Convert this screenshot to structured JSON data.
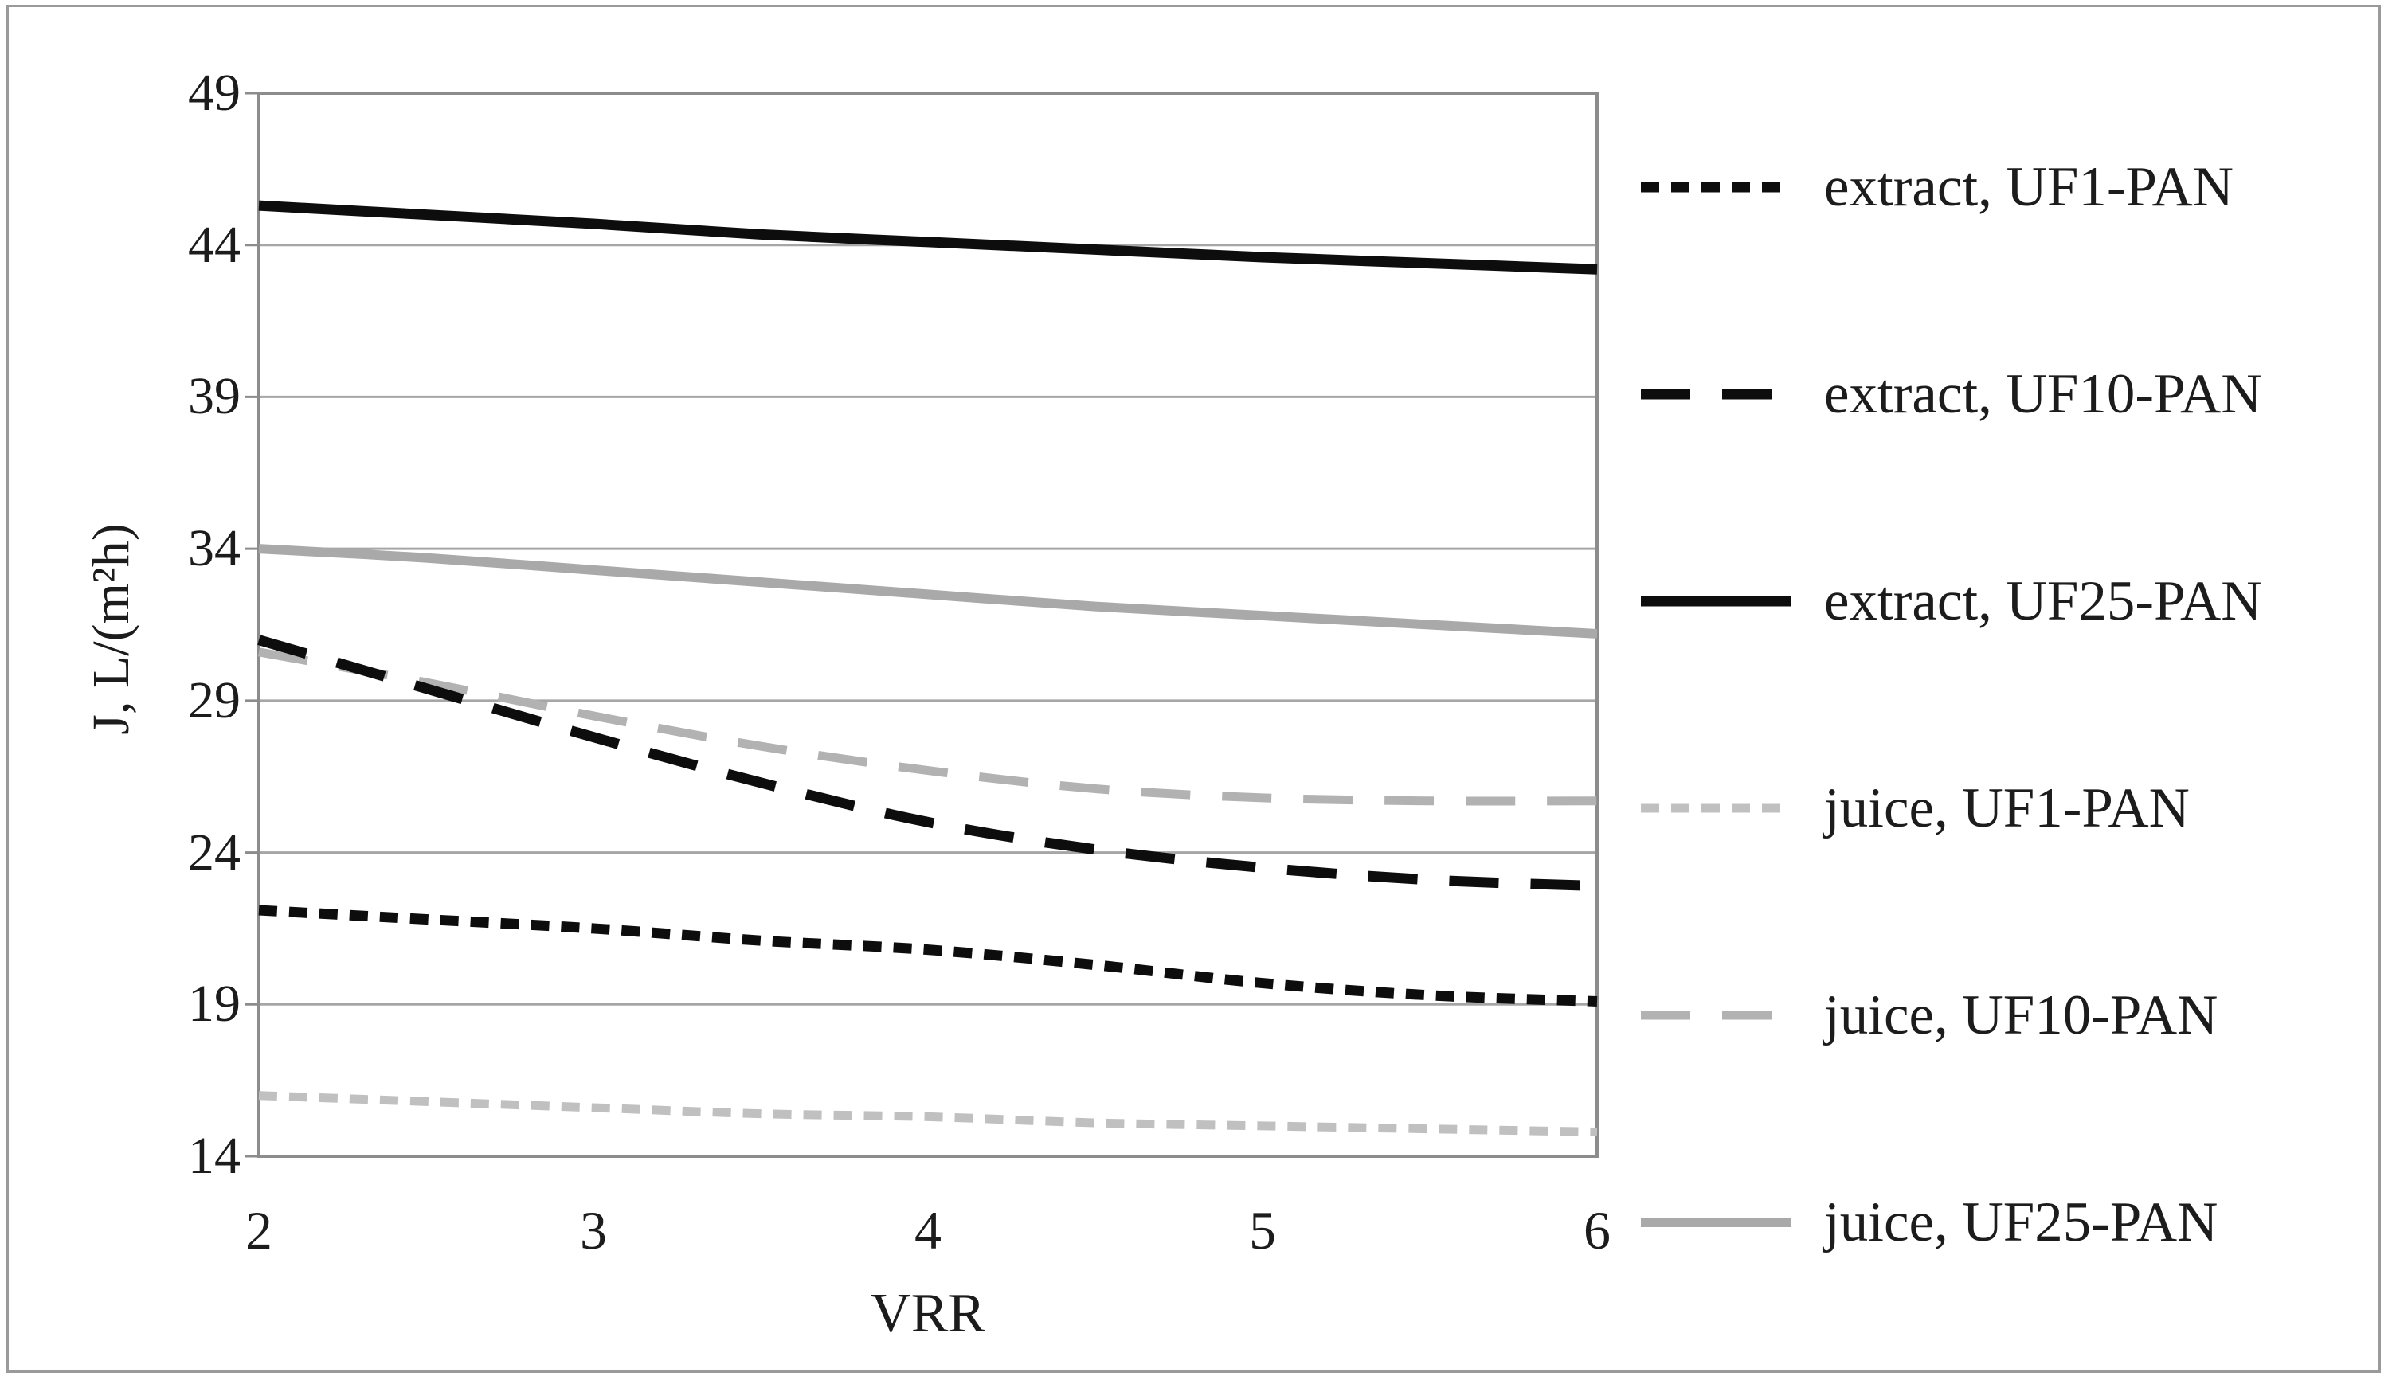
{
  "figure": {
    "background": "#ffffff",
    "border_color": "#9a9a9a"
  },
  "chart_data": {
    "type": "line",
    "title": "",
    "xlabel": "VRR",
    "ylabel": "J, L/(m²h)",
    "xlim": [
      2,
      6
    ],
    "ylim": [
      14,
      49
    ],
    "x_ticks": [
      "2",
      "3",
      "4",
      "5",
      "6"
    ],
    "y_ticks": [
      "14",
      "19",
      "24",
      "29",
      "34",
      "39",
      "44",
      "49"
    ],
    "grid": "horizontal",
    "legend_position": "right",
    "x": [
      2,
      2.5,
      3,
      3.5,
      4,
      4.5,
      5,
      5.5,
      6
    ],
    "series": [
      {
        "name": "extract, UF1-PAN",
        "color": "#0d0d0d",
        "style": "dash-small",
        "width": 13,
        "values": [
          22.1,
          21.8,
          21.5,
          21.1,
          20.8,
          20.3,
          19.7,
          19.3,
          19.1
        ]
      },
      {
        "name": "extract, UF10-PAN",
        "color": "#0d0d0d",
        "style": "dash-long",
        "width": 13,
        "values": [
          31.0,
          29.4,
          27.8,
          26.3,
          25.0,
          24.1,
          23.5,
          23.1,
          22.9
        ]
      },
      {
        "name": "extract, UF25-PAN",
        "color": "#0d0d0d",
        "style": "solid",
        "width": 13,
        "values": [
          45.3,
          45.0,
          44.7,
          44.35,
          44.1,
          43.85,
          43.6,
          43.4,
          43.2
        ]
      },
      {
        "name": "juice, UF1-PAN",
        "color": "#c0c0c0",
        "style": "dash-small",
        "width": 11,
        "values": [
          16.0,
          15.8,
          15.6,
          15.4,
          15.3,
          15.1,
          15.0,
          14.9,
          14.8
        ]
      },
      {
        "name": "juice, UF10-PAN",
        "color": "#b2b2b2",
        "style": "dash-long",
        "width": 11,
        "values": [
          30.6,
          29.6,
          28.5,
          27.5,
          26.7,
          26.1,
          25.8,
          25.7,
          25.7
        ]
      },
      {
        "name": "juice, UF25-PAN",
        "color": "#a9a9a9",
        "style": "solid",
        "width": 12,
        "values": [
          34.0,
          33.7,
          33.3,
          32.9,
          32.5,
          32.1,
          31.8,
          31.5,
          31.2
        ]
      }
    ],
    "axis_color": "#8c8c8c",
    "grid_color": "#a6a6a6",
    "text_color": "#1c1c1c"
  },
  "layout_note": "flux vs volume-reduction-ratio ultrafiltration chart"
}
